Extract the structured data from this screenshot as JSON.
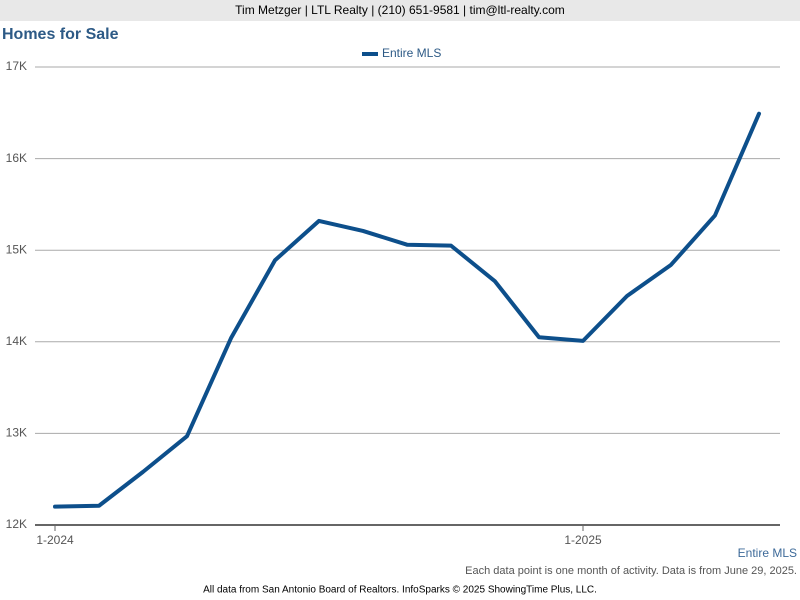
{
  "header": "Tim Metzger | LTL Realty | (210) 651-9581 | tim@ltl-realty.com",
  "chart_data": {
    "type": "line",
    "title": "Homes for Sale",
    "categories": [
      "1-2024",
      null,
      null,
      null,
      null,
      null,
      null,
      null,
      null,
      null,
      null,
      null,
      "1-2025",
      null,
      null,
      null,
      null
    ],
    "series": [
      {
        "name": "Entire MLS",
        "color": "#0d4f8b",
        "values": [
          12200,
          12210,
          12580,
          12970,
          14040,
          14890,
          15320,
          15210,
          15060,
          15050,
          14660,
          14050,
          14010,
          14500,
          14840,
          15380,
          16490
        ]
      }
    ],
    "ylim": [
      12000,
      17000
    ],
    "yticks": [
      {
        "value": 12000,
        "label": "12K"
      },
      {
        "value": 13000,
        "label": "13K"
      },
      {
        "value": 14000,
        "label": "14K"
      },
      {
        "value": 15000,
        "label": "15K"
      },
      {
        "value": 16000,
        "label": "16K"
      },
      {
        "value": 17000,
        "label": "17K"
      }
    ],
    "grid": true,
    "legend": "top"
  },
  "footnote": "Each data point is one month of activity. Data is from June 29, 2025.",
  "footer": "All data from San Antonio Board of Realtors. InfoSparks © 2025 ShowingTime Plus, LLC."
}
